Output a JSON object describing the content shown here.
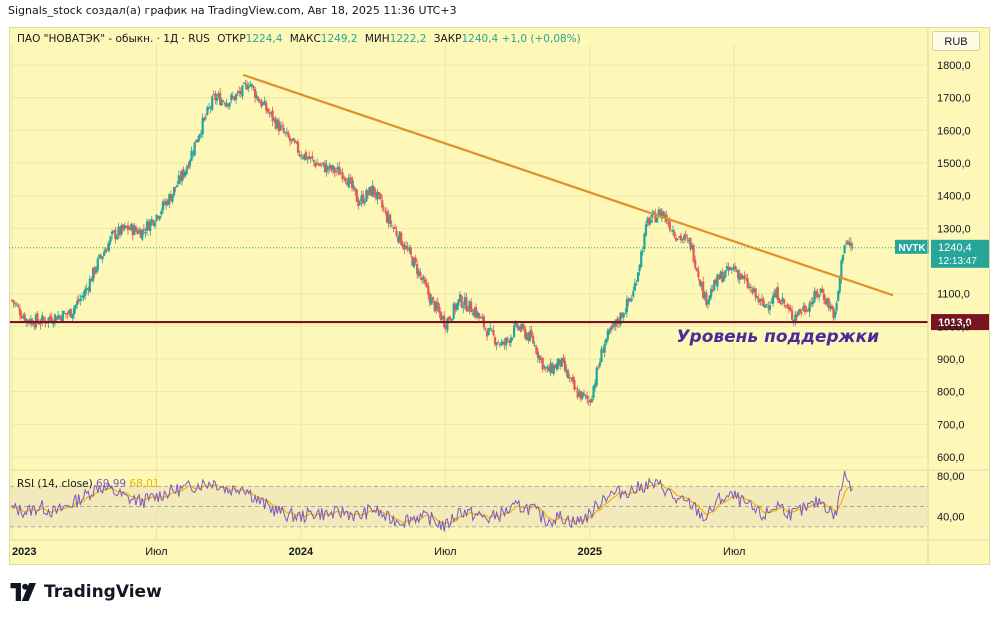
{
  "header": {
    "caption": "Signals_stock создал(а) график на TradingView.com, Авг 18, 2025 11:36 UTC+3"
  },
  "legend": {
    "symbol": "ПАО \"НОВАТЭК\" - обыкн. · 1Д · RUS",
    "open_label": "ОТКР",
    "open": "1224,4",
    "high_label": "МАКС",
    "high": "1249,2",
    "low_label": "МИН",
    "low": "1222,2",
    "close_label": "ЗАКР",
    "close": "1240,4",
    "change": "+1,0 (+0,08%)"
  },
  "currency_button": "RUB",
  "brand": {
    "name": "TradingView"
  },
  "chart_data": {
    "type": "candlestick",
    "price_axis_ticks": [
      "1800,0",
      "1700,0",
      "1600,0",
      "1500,0",
      "1400,0",
      "1300,0",
      "1100,0",
      "1000,0",
      "900,0",
      "800,0",
      "700,0",
      "600,0"
    ],
    "price_axis_values": [
      1800,
      1700,
      1600,
      1500,
      1400,
      1300,
      1100,
      1000,
      900,
      800,
      700,
      600
    ],
    "ylim": [
      560,
      1840
    ],
    "time_axis_labels": [
      {
        "label": "2023",
        "bold": true,
        "t": 0
      },
      {
        "label": "Июл",
        "bold": false,
        "t": 0.5
      },
      {
        "label": "2024",
        "bold": true,
        "t": 1
      },
      {
        "label": "Июл",
        "bold": false,
        "t": 1.5
      },
      {
        "label": "2025",
        "bold": true,
        "t": 2
      },
      {
        "label": "Июл",
        "bold": false,
        "t": 2.5
      }
    ],
    "xlim_years": [
      0,
      3.15
    ],
    "close_path": [
      [
        0.0,
        1080
      ],
      [
        0.05,
        1020
      ],
      [
        0.1,
        1015
      ],
      [
        0.15,
        1030
      ],
      [
        0.2,
        1040
      ],
      [
        0.25,
        1100
      ],
      [
        0.3,
        1200
      ],
      [
        0.35,
        1280
      ],
      [
        0.4,
        1300
      ],
      [
        0.45,
        1290
      ],
      [
        0.5,
        1340
      ],
      [
        0.55,
        1400
      ],
      [
        0.6,
        1480
      ],
      [
        0.65,
        1600
      ],
      [
        0.7,
        1700
      ],
      [
        0.75,
        1690
      ],
      [
        0.8,
        1720
      ],
      [
        0.82,
        1750
      ],
      [
        0.85,
        1700
      ],
      [
        0.9,
        1640
      ],
      [
        0.95,
        1580
      ],
      [
        1.0,
        1530
      ],
      [
        1.05,
        1500
      ],
      [
        1.1,
        1480
      ],
      [
        1.15,
        1470
      ],
      [
        1.2,
        1380
      ],
      [
        1.25,
        1420
      ],
      [
        1.3,
        1330
      ],
      [
        1.35,
        1260
      ],
      [
        1.4,
        1180
      ],
      [
        1.45,
        1080
      ],
      [
        1.5,
        1010
      ],
      [
        1.55,
        1080
      ],
      [
        1.6,
        1050
      ],
      [
        1.65,
        980
      ],
      [
        1.7,
        940
      ],
      [
        1.75,
        1000
      ],
      [
        1.8,
        960
      ],
      [
        1.85,
        860
      ],
      [
        1.9,
        890
      ],
      [
        1.95,
        800
      ],
      [
        2.0,
        770
      ],
      [
        2.05,
        950
      ],
      [
        2.1,
        1020
      ],
      [
        2.15,
        1100
      ],
      [
        2.2,
        1320
      ],
      [
        2.25,
        1350
      ],
      [
        2.3,
        1280
      ],
      [
        2.35,
        1250
      ],
      [
        2.4,
        1080
      ],
      [
        2.45,
        1150
      ],
      [
        2.5,
        1180
      ],
      [
        2.55,
        1120
      ],
      [
        2.6,
        1060
      ],
      [
        2.65,
        1100
      ],
      [
        2.7,
        1030
      ],
      [
        2.75,
        1060
      ],
      [
        2.8,
        1110
      ],
      [
        2.85,
        1030
      ],
      [
        2.88,
        1260
      ],
      [
        2.91,
        1240
      ]
    ],
    "support_level": {
      "value": 1013,
      "label": "1013,0",
      "annotation": "Уровень поддержки"
    },
    "trendline": {
      "start": [
        0.8,
        1770
      ],
      "end": [
        3.05,
        1095
      ]
    },
    "last_price": {
      "ticker": "NVTK",
      "value": 1240.4,
      "label": "1240,4",
      "countdown": "12:13:47"
    },
    "rsi": {
      "legend": "RSI (14, close)",
      "value": "69,99",
      "ma_value": "68,01",
      "ticks": [
        "80,00",
        "40,00"
      ],
      "tick_values": [
        80,
        40
      ],
      "upper_band": 70,
      "lower_band": 30,
      "ylim": [
        20,
        86
      ],
      "series": [
        [
          0.0,
          48
        ],
        [
          0.05,
          45
        ],
        [
          0.1,
          50
        ],
        [
          0.15,
          44
        ],
        [
          0.2,
          52
        ],
        [
          0.25,
          60
        ],
        [
          0.3,
          70
        ],
        [
          0.35,
          65
        ],
        [
          0.4,
          58
        ],
        [
          0.45,
          55
        ],
        [
          0.5,
          60
        ],
        [
          0.55,
          65
        ],
        [
          0.6,
          68
        ],
        [
          0.65,
          72
        ],
        [
          0.7,
          74
        ],
        [
          0.75,
          66
        ],
        [
          0.8,
          70
        ],
        [
          0.85,
          56
        ],
        [
          0.9,
          48
        ],
        [
          0.95,
          42
        ],
        [
          1.0,
          40
        ],
        [
          1.05,
          44
        ],
        [
          1.1,
          42
        ],
        [
          1.15,
          45
        ],
        [
          1.2,
          40
        ],
        [
          1.25,
          48
        ],
        [
          1.3,
          38
        ],
        [
          1.35,
          36
        ],
        [
          1.4,
          40
        ],
        [
          1.45,
          38
        ],
        [
          1.5,
          30
        ],
        [
          1.55,
          46
        ],
        [
          1.6,
          42
        ],
        [
          1.65,
          38
        ],
        [
          1.7,
          44
        ],
        [
          1.75,
          50
        ],
        [
          1.8,
          48
        ],
        [
          1.85,
          36
        ],
        [
          1.9,
          40
        ],
        [
          1.95,
          34
        ],
        [
          2.0,
          42
        ],
        [
          2.05,
          60
        ],
        [
          2.1,
          64
        ],
        [
          2.15,
          66
        ],
        [
          2.2,
          72
        ],
        [
          2.25,
          70
        ],
        [
          2.3,
          56
        ],
        [
          2.35,
          52
        ],
        [
          2.4,
          38
        ],
        [
          2.45,
          58
        ],
        [
          2.5,
          60
        ],
        [
          2.55,
          50
        ],
        [
          2.6,
          40
        ],
        [
          2.65,
          52
        ],
        [
          2.7,
          42
        ],
        [
          2.75,
          48
        ],
        [
          2.8,
          56
        ],
        [
          2.85,
          40
        ],
        [
          2.88,
          82
        ],
        [
          2.91,
          70
        ]
      ]
    }
  },
  "colors": {
    "bg": "#fdf7b8",
    "up": "#26a69a",
    "down": "#e05a5a",
    "trendline": "#e0902a",
    "support": "#7a1420",
    "annotation": "#4b2a9a",
    "rsi_line": "#7e57c2",
    "rsi_ma": "#f0b400",
    "last_price": "#26a69a"
  }
}
